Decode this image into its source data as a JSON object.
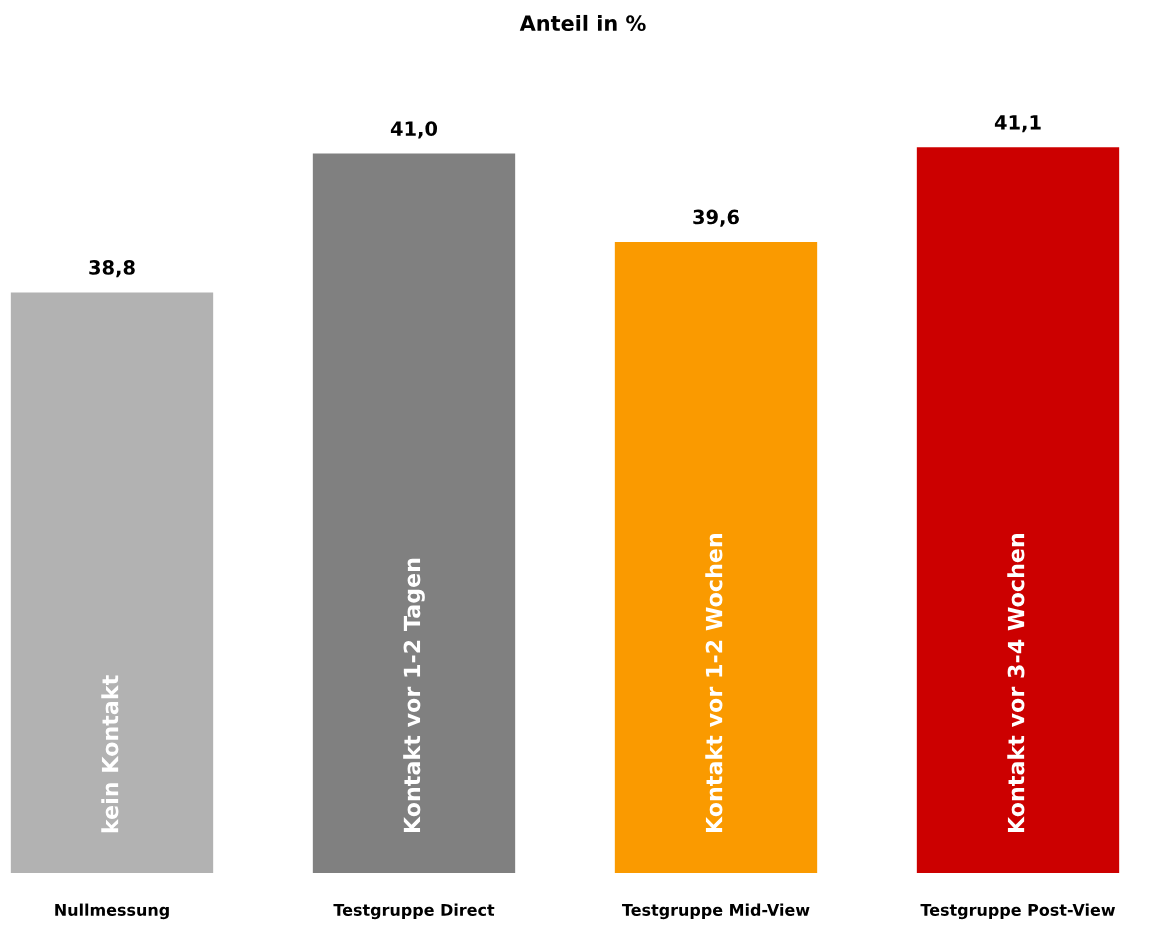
{
  "chart_data": {
    "type": "bar",
    "title": "Anteil in %",
    "categories": [
      "Nullmessung",
      "Testgruppe Direct",
      "Testgruppe Mid-View",
      "Testgruppe Post-View"
    ],
    "values": [
      38.8,
      41.0,
      39.6,
      41.1
    ],
    "colors": [
      "#b2b2b2",
      "#808080",
      "#fa9a00",
      "#cc0000"
    ],
    "value_labels": [
      "38,8",
      "41,0",
      "39,6",
      "41,1"
    ],
    "tick_labels": "x",
    "grid": false,
    "annotations": [
      "kein Kontakt",
      "Kontakt vor 1-2 Tagen",
      "Kontakt vor 1-2 Wochen",
      "Kontakt vor 3-4 Wochen"
    ]
  }
}
